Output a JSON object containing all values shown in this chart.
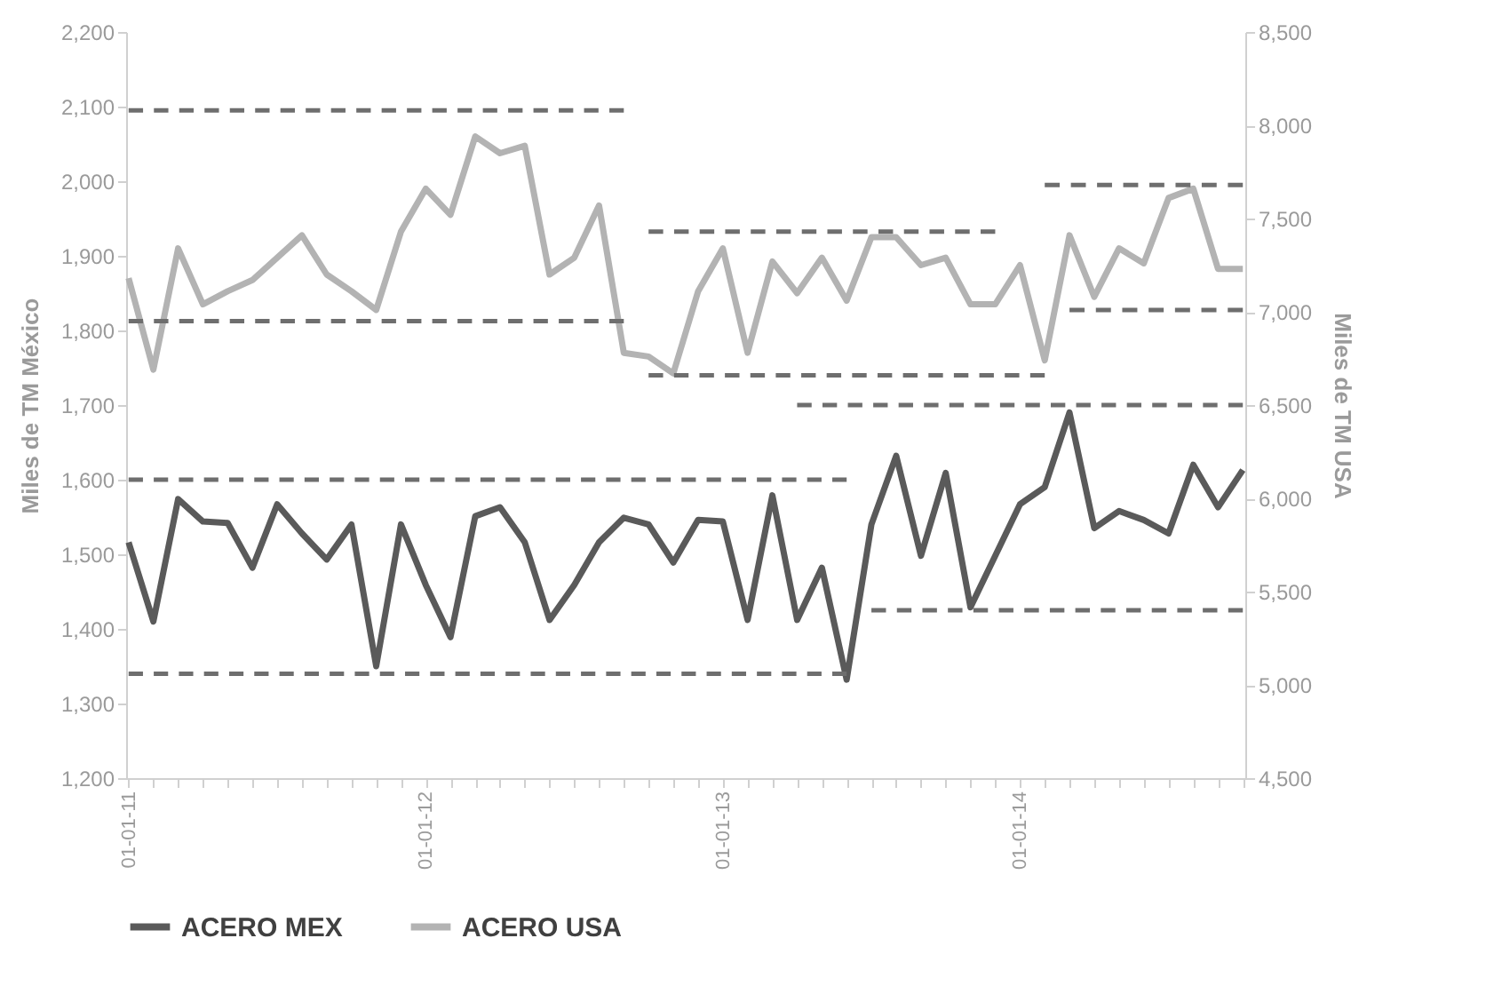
{
  "chart_data": {
    "type": "line",
    "ylabel": "Miles de TM México",
    "y2label": "Miles de TM USA",
    "categories": [
      "01-01-11",
      null,
      null,
      null,
      null,
      null,
      null,
      null,
      null,
      null,
      null,
      null,
      "01-01-12",
      null,
      null,
      null,
      null,
      null,
      null,
      null,
      null,
      null,
      null,
      null,
      "01-01-13",
      null,
      null,
      null,
      null,
      null,
      null,
      null,
      null,
      null,
      null,
      null,
      "01-01-14",
      null,
      null,
      null,
      null,
      null,
      null,
      null,
      null,
      null
    ],
    "ylim": [
      1200,
      2200
    ],
    "yticks": [
      {
        "value": 1200,
        "label": "1,200"
      },
      {
        "value": 1300,
        "label": "1,300"
      },
      {
        "value": 1400,
        "label": "1,400"
      },
      {
        "value": 1500,
        "label": "1,500"
      },
      {
        "value": 1600,
        "label": "1,600"
      },
      {
        "value": 1700,
        "label": "1,700"
      },
      {
        "value": 1800,
        "label": "1,800"
      },
      {
        "value": 1900,
        "label": "1,900"
      },
      {
        "value": 2000,
        "label": "2,000"
      },
      {
        "value": 2100,
        "label": "2,100"
      },
      {
        "value": 2200,
        "label": "2,200"
      }
    ],
    "y2lim": [
      4500,
      8500
    ],
    "y2ticks": [
      {
        "value": 4500,
        "label": "4,500"
      },
      {
        "value": 5000,
        "label": "5,000"
      },
      {
        "value": 5500,
        "label": "5,500"
      },
      {
        "value": 6000,
        "label": "6,000"
      },
      {
        "value": 6500,
        "label": "6,500"
      },
      {
        "value": 7000,
        "label": "7,000"
      },
      {
        "value": 7500,
        "label": "7,500"
      },
      {
        "value": 8000,
        "label": "8,000"
      },
      {
        "value": 8500,
        "label": "8,500"
      }
    ],
    "legend": "bottom",
    "series": [
      {
        "name": "ACERO MEX",
        "color": "#5a5a5a",
        "values": [
          1516,
          1410,
          1574,
          1544,
          1542,
          1482,
          1567,
          1528,
          1493,
          1540,
          1350,
          1540,
          1459,
          1389,
          1551,
          1563,
          1516,
          1412,
          1459,
          1516,
          1549,
          1540,
          1489,
          1546,
          1544,
          1412,
          1579,
          1412,
          1482,
          1332,
          1540,
          1632,
          1498,
          1609,
          1429,
          1498,
          1567,
          1590,
          1690,
          1535,
          1558,
          1546,
          1528,
          1620,
          1563,
          1613
        ]
      },
      {
        "name": "ACERO USA",
        "color": "#b3b3b3",
        "axis": "y2",
        "values": [
          7180,
          6690,
          7340,
          7040,
          7110,
          7170,
          7290,
          7410,
          7200,
          7110,
          7010,
          7430,
          7660,
          7520,
          7940,
          7850,
          7890,
          7200,
          7290,
          7570,
          6780,
          6760,
          6670,
          7110,
          7340,
          6780,
          7270,
          7100,
          7290,
          7060,
          7400,
          7400,
          7250,
          7290,
          7040,
          7040,
          7250,
          6740,
          7410,
          7080,
          7340,
          7260,
          7610,
          7660,
          7230,
          7230
        ]
      },
      {
        "color": "#6e6e6e",
        "line_style": "dashed",
        "values": [
          1600,
          1600,
          1600,
          1600,
          1600,
          1600,
          1600,
          1600,
          1600,
          1600,
          1600,
          1600,
          1600,
          1600,
          1600,
          1600,
          1600,
          1600,
          1600,
          1600,
          1600,
          1600,
          1600,
          1600,
          1600,
          1600,
          1600,
          1600,
          1600,
          1600,
          null,
          null,
          null,
          null,
          null,
          null,
          null,
          null,
          null,
          null,
          null,
          null,
          null,
          null,
          null,
          null
        ]
      },
      {
        "color": "#6e6e6e",
        "line_style": "dashed",
        "values": [
          1340,
          1340,
          1340,
          1340,
          1340,
          1340,
          1340,
          1340,
          1340,
          1340,
          1340,
          1340,
          1340,
          1340,
          1340,
          1340,
          1340,
          1340,
          1340,
          1340,
          1340,
          1340,
          1340,
          1340,
          1340,
          1340,
          1340,
          1340,
          1340,
          1340,
          null,
          null,
          null,
          null,
          null,
          null,
          null,
          null,
          null,
          null,
          null,
          null,
          null,
          null,
          null,
          null
        ]
      },
      {
        "color": "#6e6e6e",
        "line_style": "dashed",
        "values": [
          null,
          null,
          null,
          null,
          null,
          null,
          null,
          null,
          null,
          null,
          null,
          null,
          null,
          null,
          null,
          null,
          null,
          null,
          null,
          null,
          null,
          null,
          null,
          null,
          null,
          null,
          null,
          1700,
          1700,
          1700,
          1700,
          1700,
          1700,
          1700,
          1700,
          1700,
          1700,
          1700,
          1700,
          1700,
          1700,
          1700,
          1700,
          1700,
          1700,
          1700
        ]
      },
      {
        "color": "#6e6e6e",
        "line_style": "dashed",
        "values": [
          null,
          null,
          null,
          null,
          null,
          null,
          null,
          null,
          null,
          null,
          null,
          null,
          null,
          null,
          null,
          null,
          null,
          null,
          null,
          null,
          null,
          null,
          null,
          null,
          null,
          null,
          null,
          null,
          null,
          null,
          1425,
          1425,
          1425,
          1425,
          1425,
          1425,
          1425,
          1425,
          1425,
          1425,
          1425,
          1425,
          1425,
          1425,
          1425,
          1425
        ]
      },
      {
        "color": "#6e6e6e",
        "line_style": "dashed",
        "axis": "y2",
        "values": [
          8080,
          8080,
          8080,
          8080,
          8080,
          8080,
          8080,
          8080,
          8080,
          8080,
          8080,
          8080,
          8080,
          8080,
          8080,
          8080,
          8080,
          8080,
          8080,
          8080,
          8080,
          null,
          null,
          null,
          null,
          null,
          null,
          null,
          null,
          null,
          null,
          null,
          null,
          null,
          null,
          null,
          null,
          null,
          null,
          null,
          null,
          null,
          null,
          null,
          null,
          null
        ]
      },
      {
        "color": "#6e6e6e",
        "line_style": "dashed",
        "axis": "y2",
        "values": [
          6950,
          6950,
          6950,
          6950,
          6950,
          6950,
          6950,
          6950,
          6950,
          6950,
          6950,
          6950,
          6950,
          6950,
          6950,
          6950,
          6950,
          6950,
          6950,
          6950,
          6950,
          null,
          null,
          null,
          null,
          null,
          null,
          null,
          null,
          null,
          null,
          null,
          null,
          null,
          null,
          null,
          null,
          null,
          null,
          null,
          null,
          null,
          null,
          null,
          null,
          null
        ]
      },
      {
        "color": "#6e6e6e",
        "line_style": "dashed",
        "axis": "y2",
        "values": [
          null,
          null,
          null,
          null,
          null,
          null,
          null,
          null,
          null,
          null,
          null,
          null,
          null,
          null,
          null,
          null,
          null,
          null,
          null,
          null,
          null,
          7430,
          7430,
          7430,
          7430,
          7430,
          7430,
          7430,
          7430,
          7430,
          7430,
          7430,
          7430,
          7430,
          7430,
          7430,
          null,
          null,
          null,
          null,
          null,
          null,
          null,
          null,
          null,
          null
        ]
      },
      {
        "color": "#6e6e6e",
        "line_style": "dashed",
        "axis": "y2",
        "values": [
          null,
          null,
          null,
          null,
          null,
          null,
          null,
          null,
          null,
          null,
          null,
          null,
          null,
          null,
          null,
          null,
          null,
          null,
          null,
          null,
          null,
          6660,
          6660,
          6660,
          6660,
          6660,
          6660,
          6660,
          6660,
          6660,
          6660,
          6660,
          6660,
          6660,
          6660,
          6660,
          6660,
          6660,
          null,
          null,
          null,
          null,
          null,
          null,
          null,
          null
        ]
      },
      {
        "color": "#6e6e6e",
        "line_style": "dashed",
        "axis": "y2",
        "values": [
          null,
          null,
          null,
          null,
          null,
          null,
          null,
          null,
          null,
          null,
          null,
          null,
          null,
          null,
          null,
          null,
          null,
          null,
          null,
          null,
          null,
          null,
          null,
          null,
          null,
          null,
          null,
          null,
          null,
          null,
          null,
          null,
          null,
          null,
          null,
          null,
          null,
          7680,
          7680,
          7680,
          7680,
          7680,
          7680,
          7680,
          7680,
          7680
        ]
      },
      {
        "color": "#6e6e6e",
        "line_style": "dashed",
        "axis": "y2",
        "values": [
          null,
          null,
          null,
          null,
          null,
          null,
          null,
          null,
          null,
          null,
          null,
          null,
          null,
          null,
          null,
          null,
          null,
          null,
          null,
          null,
          null,
          null,
          null,
          null,
          null,
          null,
          null,
          null,
          null,
          null,
          null,
          null,
          null,
          null,
          null,
          null,
          null,
          null,
          7010,
          7010,
          7010,
          7010,
          7010,
          7010,
          7010,
          7010
        ]
      }
    ]
  }
}
